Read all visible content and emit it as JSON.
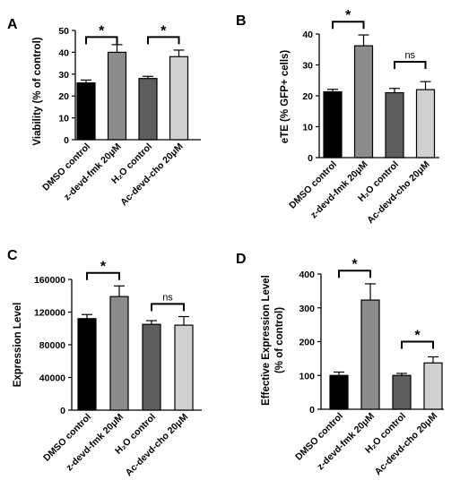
{
  "colors": [
    "#000000",
    "#8c8c8c",
    "#5e5e5e",
    "#d0d0d0"
  ],
  "chart_data": [
    {
      "type": "bar",
      "panel": "A",
      "ylabel": "Viability (% of control)",
      "ylim": [
        0,
        50
      ],
      "yticks": [
        0,
        10,
        20,
        30,
        40,
        50
      ],
      "ytick_labels": [
        "0",
        "10",
        "20",
        "30",
        "40",
        "50"
      ],
      "categories": [
        "DMSO control",
        "z-devd-fmk 20μM",
        "H₂O control",
        "Ac-devd-cho 20μM"
      ],
      "values": [
        26,
        40,
        28,
        38
      ],
      "errors": [
        1.3,
        3.5,
        1.0,
        3.0
      ],
      "significance": [
        {
          "from": 0,
          "to": 1,
          "label": "*",
          "y": 47
        },
        {
          "from": 2,
          "to": 3,
          "label": "*",
          "y": 47
        }
      ]
    },
    {
      "type": "bar",
      "panel": "B",
      "ylabel": "eTE (% GFP+ cells)",
      "ylim": [
        0,
        40
      ],
      "yticks": [
        0,
        10,
        20,
        30,
        40
      ],
      "ytick_labels": [
        "0",
        "10",
        "20",
        "30",
        "40"
      ],
      "categories": [
        "DMSO control",
        "z-devd-fmk 20μM",
        "H₂O control",
        "Ac-devd-cho 20μM"
      ],
      "values": [
        21.3,
        36.2,
        21,
        22
      ],
      "errors": [
        0.8,
        3.5,
        1.4,
        2.6
      ],
      "significance": [
        {
          "from": 0,
          "to": 1,
          "label": "*",
          "y": 44
        },
        {
          "from": 2,
          "to": 3,
          "label": "ns",
          "y": 31
        }
      ]
    },
    {
      "type": "bar",
      "panel": "C",
      "ylabel": "Expression Level",
      "ylim": [
        0,
        160000
      ],
      "yticks": [
        0,
        40000,
        80000,
        120000,
        160000
      ],
      "ytick_labels": [
        "0",
        "40000",
        "80000",
        "120000",
        "160000"
      ],
      "categories": [
        "DMSO control",
        "z-devd-fmk 20μM",
        "H₂O control",
        "Ac-devd-cho 20μM"
      ],
      "values": [
        112000,
        139000,
        105000,
        104000
      ],
      "errors": [
        5000,
        13000,
        4500,
        10500
      ],
      "significance": [
        {
          "from": 0,
          "to": 1,
          "label": "*",
          "y": 168000
        },
        {
          "from": 2,
          "to": 3,
          "label": "ns",
          "y": 130000
        }
      ]
    },
    {
      "type": "bar",
      "panel": "D",
      "ylabel": "Effective Expression Level (% of control)",
      "ylabel_lines": [
        "Effective Expression Level",
        "(% of control)"
      ],
      "ylim": [
        0,
        400
      ],
      "yticks": [
        0,
        100,
        200,
        300,
        400
      ],
      "ytick_labels": [
        "0",
        "100",
        "200",
        "300",
        "400"
      ],
      "categories": [
        "DMSO control",
        "z-devd-fmk 20μM",
        "H₂O control",
        "Ac-devd-cho 20μM"
      ],
      "values": [
        100,
        323,
        100,
        137
      ],
      "errors": [
        10,
        48,
        6,
        18
      ],
      "significance": [
        {
          "from": 0,
          "to": 1,
          "label": "*",
          "y": 410
        },
        {
          "from": 2,
          "to": 3,
          "label": "*",
          "y": 200
        }
      ]
    }
  ]
}
